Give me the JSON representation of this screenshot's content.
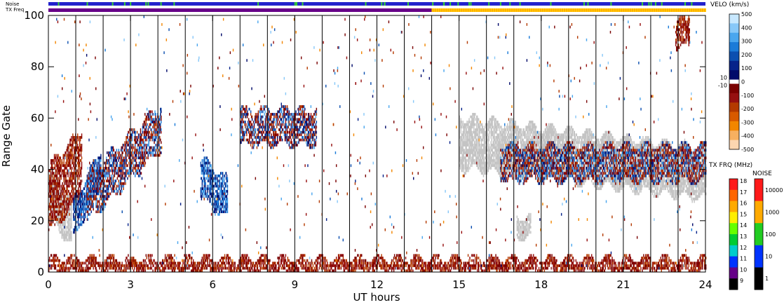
{
  "chart_data": {
    "type": "heatmap",
    "xlabel": "UT hours",
    "ylabel": "Range Gate",
    "xlim": [
      0,
      24
    ],
    "ylim": [
      0,
      100
    ],
    "x_ticks": [
      "0",
      "3",
      "6",
      "9",
      "12",
      "15",
      "18",
      "21",
      "24"
    ],
    "y_ticks": [
      "0",
      "20",
      "40",
      "60",
      "80",
      "100"
    ],
    "scan_boundaries_hours": [
      1,
      2,
      3,
      4,
      5,
      6,
      7,
      8,
      9,
      10,
      11,
      12,
      13,
      14,
      15,
      16,
      17,
      18,
      19,
      20,
      21,
      22,
      23
    ],
    "top_strips": {
      "noise_label": "Noise",
      "txfreq_label": "TX Freq",
      "noise_color": "#2222cc",
      "noise_spike_color": "#33cc33",
      "txfreq_color_before": "#660088",
      "txfreq_color_after": "#ffaa00",
      "txfreq_change_hour": 14
    },
    "velocity_scale": {
      "title": "VELO (km/s)",
      "ticks": [
        "500",
        "400",
        "300",
        "200",
        "100",
        "0",
        "-100",
        "-200",
        "-300",
        "-400",
        "-500"
      ],
      "zero_labels": [
        "10",
        "-10"
      ],
      "colors_positive": [
        "#c8e8ff",
        "#88c8f8",
        "#4aa6ee",
        "#1b7bd8",
        "#0c4fb0",
        "#06238a",
        "#000a6a"
      ],
      "colors_negative": [
        "#7a0000",
        "#961010",
        "#b43a00",
        "#d85a00",
        "#f28600",
        "#f7b060",
        "#fcd6b0"
      ],
      "ground_scatter_color": "#c4c4c4"
    },
    "txfreq_scale": {
      "title": "TX FRQ (MHz)",
      "ticks": [
        "18",
        "17",
        "16",
        "15",
        "14",
        "13",
        "12",
        "11",
        "10",
        "9"
      ],
      "colors": [
        "#ff1a1a",
        "#ff6600",
        "#ffaa00",
        "#ffee00",
        "#66ff00",
        "#00cc33",
        "#00cccc",
        "#0033ff",
        "#660088",
        "#000000"
      ]
    },
    "noise_scale": {
      "title": "NOISE",
      "ticks": [
        "10000",
        "1000",
        "100",
        "10",
        "1"
      ],
      "colors": [
        "#ff1a1a",
        "#ffaa00",
        "#22cc22",
        "#0033ff",
        "#000000"
      ]
    },
    "regions": [
      {
        "kind": "ground",
        "x_range": [
          0.05,
          0.85
        ],
        "center_gate_start": 30,
        "center_gate_end": 18,
        "half_width": 8
      },
      {
        "kind": "negative",
        "x_range": [
          0.0,
          1.2
        ],
        "center_gate_start": 28,
        "center_gate_end": 42,
        "half_width": 12
      },
      {
        "kind": "positive",
        "x_range": [
          0.9,
          1.9
        ],
        "center_gate_start": 20,
        "center_gate_end": 40,
        "half_width": 6
      },
      {
        "kind": "mixed",
        "x_range": [
          1.4,
          4.1
        ],
        "center_gate_start": 28,
        "center_gate_end": 56,
        "half_width": 8
      },
      {
        "kind": "positive",
        "x_range": [
          5.55,
          6.55
        ],
        "center_gate_start": 36,
        "center_gate_end": 28,
        "half_width": 7
      },
      {
        "kind": "mixed",
        "x_range": [
          7.0,
          9.8
        ],
        "center_gate_start": 56,
        "center_gate_end": 56,
        "half_width": 6
      },
      {
        "kind": "ground",
        "x_range": [
          15.0,
          24.0
        ],
        "center_gate_start": 50,
        "center_gate_end": 38,
        "half_width": 9
      },
      {
        "kind": "mixed",
        "x_range": [
          16.5,
          24.0
        ],
        "center_gate_start": 42,
        "center_gate_end": 42,
        "half_width": 6
      },
      {
        "kind": "ground",
        "x_range": [
          17.1,
          17.6
        ],
        "center_gate_start": 17,
        "center_gate_end": 17,
        "half_width": 3
      },
      {
        "kind": "negative",
        "x_range": [
          22.9,
          23.4
        ],
        "center_gate_start": 93,
        "center_gate_end": 93,
        "half_width": 5
      },
      {
        "kind": "negative",
        "x_range": [
          0.0,
          24.0
        ],
        "center_gate_start": 2,
        "center_gate_end": 2,
        "half_width": 2
      }
    ]
  }
}
